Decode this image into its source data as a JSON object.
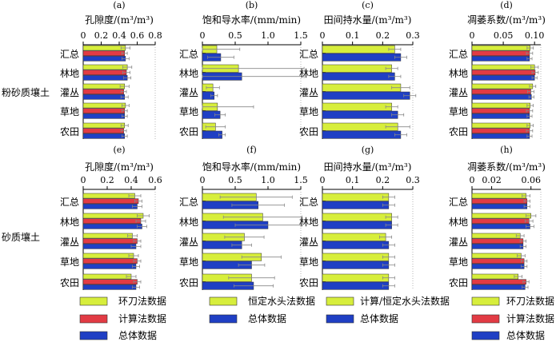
{
  "colors": {
    "yellow": "#d7ee3c",
    "red": "#e23b44",
    "blue": "#1f3fc4",
    "errorbar": "#888888"
  },
  "row_label_silt": "粉砂质壤土",
  "row_label_sand": "砂质壤土",
  "legends": [
    {
      "items": [
        {
          "label": "环刀法数据",
          "color_key": "yellow"
        },
        {
          "label": "计算法数据",
          "color_key": "red"
        },
        {
          "label": "总体数据",
          "color_key": "blue"
        }
      ]
    },
    {
      "items": [
        {
          "label": "恒定水头法数据",
          "color_key": "yellow"
        },
        {
          "label": "总体数据",
          "color_key": "blue"
        }
      ]
    },
    {
      "items": [
        {
          "label": "计算/恒定水头法数据",
          "color_key": "yellow"
        },
        {
          "label": "总体数据",
          "color_key": "blue"
        }
      ]
    },
    {
      "items": [
        {
          "label": "环刀法数据",
          "color_key": "yellow"
        },
        {
          "label": "计算法数据",
          "color_key": "red"
        },
        {
          "label": "总体数据",
          "color_key": "blue"
        }
      ]
    }
  ],
  "chart_data": [
    {
      "type": "bar",
      "panel": "(a)",
      "title": "孔隙度/(m³/m³)",
      "categories": [
        "汇总",
        "林地",
        "灌丛",
        "草地",
        "农田"
      ],
      "xlim": [
        0,
        0.8
      ],
      "ticks": [
        0,
        0.2,
        0.4,
        0.6,
        0.8
      ],
      "tick_labels": [
        "0",
        "0.2",
        "0.4",
        "0.6",
        "0.8"
      ],
      "series": [
        {
          "name": "环刀法数据",
          "color_key": "yellow",
          "values": [
            0.47,
            0.49,
            0.46,
            0.47,
            0.46
          ],
          "errors": [
            0.05,
            0.05,
            0.05,
            0.04,
            0.04
          ]
        },
        {
          "name": "计算法数据",
          "color_key": "red",
          "values": [
            0.46,
            0.48,
            0.45,
            0.46,
            0.45
          ],
          "errors": [
            0.03,
            0.04,
            0.03,
            0.03,
            0.03
          ]
        },
        {
          "name": "总体数据",
          "color_key": "blue",
          "values": [
            0.47,
            0.49,
            0.46,
            0.46,
            0.46
          ],
          "errors": [
            0.04,
            0.04,
            0.04,
            0.03,
            0.03
          ]
        }
      ]
    },
    {
      "type": "bar",
      "panel": "(b)",
      "title": "饱和导水率/(mm/min)",
      "categories": [
        "汇总",
        "林地",
        "灌丛",
        "草地",
        "农田"
      ],
      "xlim": [
        0,
        1.5
      ],
      "ticks": [
        0,
        0.5,
        1.0,
        1.5
      ],
      "tick_labels": [
        "0",
        "0.5",
        "1.0",
        "1.5"
      ],
      "series": [
        {
          "name": "恒定水头法数据",
          "color_key": "yellow",
          "values": [
            0.22,
            0.55,
            0.16,
            0.23,
            0.2
          ],
          "errors": [
            0.35,
            1.0,
            0.1,
            0.55,
            0.15
          ]
        },
        {
          "name": "总体数据",
          "color_key": "blue",
          "values": [
            0.28,
            0.6,
            0.18,
            0.27,
            0.3
          ],
          "errors": [
            0.2,
            0.95,
            0.05,
            0.08,
            0.05
          ]
        }
      ]
    },
    {
      "type": "bar",
      "panel": "(c)",
      "title": "田间持水量/(m³/m³)",
      "categories": [
        "汇总",
        "林地",
        "灌丛",
        "草地",
        "农田"
      ],
      "xlim": [
        0,
        0.3
      ],
      "ticks": [
        0,
        0.1,
        0.2,
        0.3
      ],
      "tick_labels": [
        "0",
        "0.1",
        "0.2",
        "0.3"
      ],
      "series": [
        {
          "name": "计算/恒定水头法数据",
          "color_key": "yellow",
          "values": [
            0.24,
            0.23,
            0.26,
            0.23,
            0.25
          ],
          "errors": [
            0.02,
            0.02,
            0.03,
            0.02,
            0.04
          ]
        },
        {
          "name": "总体数据",
          "color_key": "blue",
          "values": [
            0.26,
            0.24,
            0.29,
            0.25,
            0.26
          ],
          "errors": [
            0.02,
            0.02,
            0.02,
            0.02,
            0.02
          ]
        }
      ]
    },
    {
      "type": "bar",
      "panel": "(d)",
      "title": "凋萎系数/(m³/m³)",
      "categories": [
        "汇总",
        "林地",
        "灌丛",
        "草地",
        "农田"
      ],
      "xlim": [
        0,
        0.11
      ],
      "ticks": [
        0,
        0.05,
        0.1
      ],
      "tick_labels": [
        "0",
        "0.05",
        "0.10"
      ],
      "series": [
        {
          "name": "环刀法数据",
          "color_key": "yellow",
          "values": [
            0.093,
            0.1,
            0.097,
            0.093,
            0.093
          ],
          "errors": [
            0.005,
            0.006,
            0.005,
            0.005,
            0.005
          ]
        },
        {
          "name": "计算法数据",
          "color_key": "red",
          "values": [
            0.092,
            0.101,
            0.094,
            0.092,
            0.092
          ],
          "errors": [
            0.005,
            0.005,
            0.005,
            0.005,
            0.005
          ]
        },
        {
          "name": "总体数据",
          "color_key": "blue",
          "values": [
            0.092,
            0.1,
            0.095,
            0.092,
            0.092
          ],
          "errors": [
            0.004,
            0.004,
            0.004,
            0.004,
            0.004
          ]
        }
      ]
    },
    {
      "type": "bar",
      "panel": "(e)",
      "title": "孔隙度/(m³/m³)",
      "categories": [
        "汇总",
        "林地",
        "灌丛",
        "草地",
        "农田"
      ],
      "xlim": [
        0,
        0.6
      ],
      "ticks": [
        0,
        0.2,
        0.4,
        0.6
      ],
      "tick_labels": [
        "0",
        "0.2",
        "0.4",
        "0.6"
      ],
      "series": [
        {
          "name": "环刀法数据",
          "color_key": "yellow",
          "values": [
            0.43,
            0.5,
            0.41,
            0.42,
            0.4
          ],
          "errors": [
            0.05,
            0.05,
            0.04,
            0.04,
            0.04
          ]
        },
        {
          "name": "计算法数据",
          "color_key": "red",
          "values": [
            0.46,
            0.48,
            0.45,
            0.45,
            0.45
          ],
          "errors": [
            0.03,
            0.04,
            0.03,
            0.03,
            0.03
          ]
        },
        {
          "name": "总体数据",
          "color_key": "blue",
          "values": [
            0.45,
            0.49,
            0.44,
            0.44,
            0.44
          ],
          "errors": [
            0.04,
            0.04,
            0.04,
            0.03,
            0.03
          ]
        }
      ]
    },
    {
      "type": "bar",
      "panel": "(f)",
      "title": "饱和导水率/(mm/min)",
      "categories": [
        "汇总",
        "林地",
        "灌丛",
        "草地",
        "农田"
      ],
      "xlim": [
        0,
        1.5
      ],
      "ticks": [
        0,
        0.5,
        1.0,
        1.5
      ],
      "tick_labels": [
        "0",
        "0.5",
        "1.0",
        "1.5"
      ],
      "series": [
        {
          "name": "恒定水头法数据",
          "color_key": "yellow",
          "values": [
            0.82,
            0.92,
            0.64,
            0.9,
            0.75
          ],
          "errors": [
            0.55,
            0.6,
            0.3,
            0.3,
            0.35
          ]
        },
        {
          "name": "总体数据",
          "color_key": "blue",
          "values": [
            0.85,
            1.0,
            0.6,
            0.75,
            0.78
          ],
          "errors": [
            0.4,
            0.5,
            0.15,
            0.2,
            0.3
          ]
        }
      ]
    },
    {
      "type": "bar",
      "panel": "(g)",
      "title": "田间持水量/(m³/m³)",
      "categories": [
        "汇总",
        "林地",
        "灌丛",
        "草地",
        "农田"
      ],
      "xlim": [
        0,
        0.3
      ],
      "ticks": [
        0,
        0.1,
        0.2,
        0.3
      ],
      "tick_labels": [
        "0",
        "0.1",
        "0.2",
        "0.3"
      ],
      "series": [
        {
          "name": "计算/恒定水头法数据",
          "color_key": "yellow",
          "values": [
            0.22,
            0.23,
            0.21,
            0.22,
            0.22
          ],
          "errors": [
            0.02,
            0.02,
            0.02,
            0.02,
            0.02
          ]
        },
        {
          "name": "总体数据",
          "color_key": "blue",
          "values": [
            0.22,
            0.23,
            0.22,
            0.22,
            0.22
          ],
          "errors": [
            0.02,
            0.02,
            0.02,
            0.02,
            0.02
          ]
        }
      ]
    },
    {
      "type": "bar",
      "panel": "(h)",
      "title": "凋萎系数/(m³/m³)",
      "categories": [
        "汇总",
        "林地",
        "灌丛",
        "草地",
        "农田"
      ],
      "xlim": [
        0,
        0.07
      ],
      "ticks": [
        0,
        0.02,
        0.06
      ],
      "tick_labels": [
        "0",
        "0.02",
        "0.06"
      ],
      "series": [
        {
          "name": "环刀法数据",
          "color_key": "yellow",
          "values": [
            0.055,
            0.06,
            0.049,
            0.05,
            0.047
          ],
          "errors": [
            0.004,
            0.005,
            0.004,
            0.004,
            0.004
          ]
        },
        {
          "name": "计算法数据",
          "color_key": "red",
          "values": [
            0.056,
            0.058,
            0.052,
            0.053,
            0.055
          ],
          "errors": [
            0.003,
            0.004,
            0.003,
            0.003,
            0.003
          ]
        },
        {
          "name": "总体数据",
          "color_key": "blue",
          "values": [
            0.056,
            0.059,
            0.052,
            0.053,
            0.054
          ],
          "errors": [
            0.003,
            0.004,
            0.003,
            0.003,
            0.003
          ]
        }
      ]
    }
  ]
}
